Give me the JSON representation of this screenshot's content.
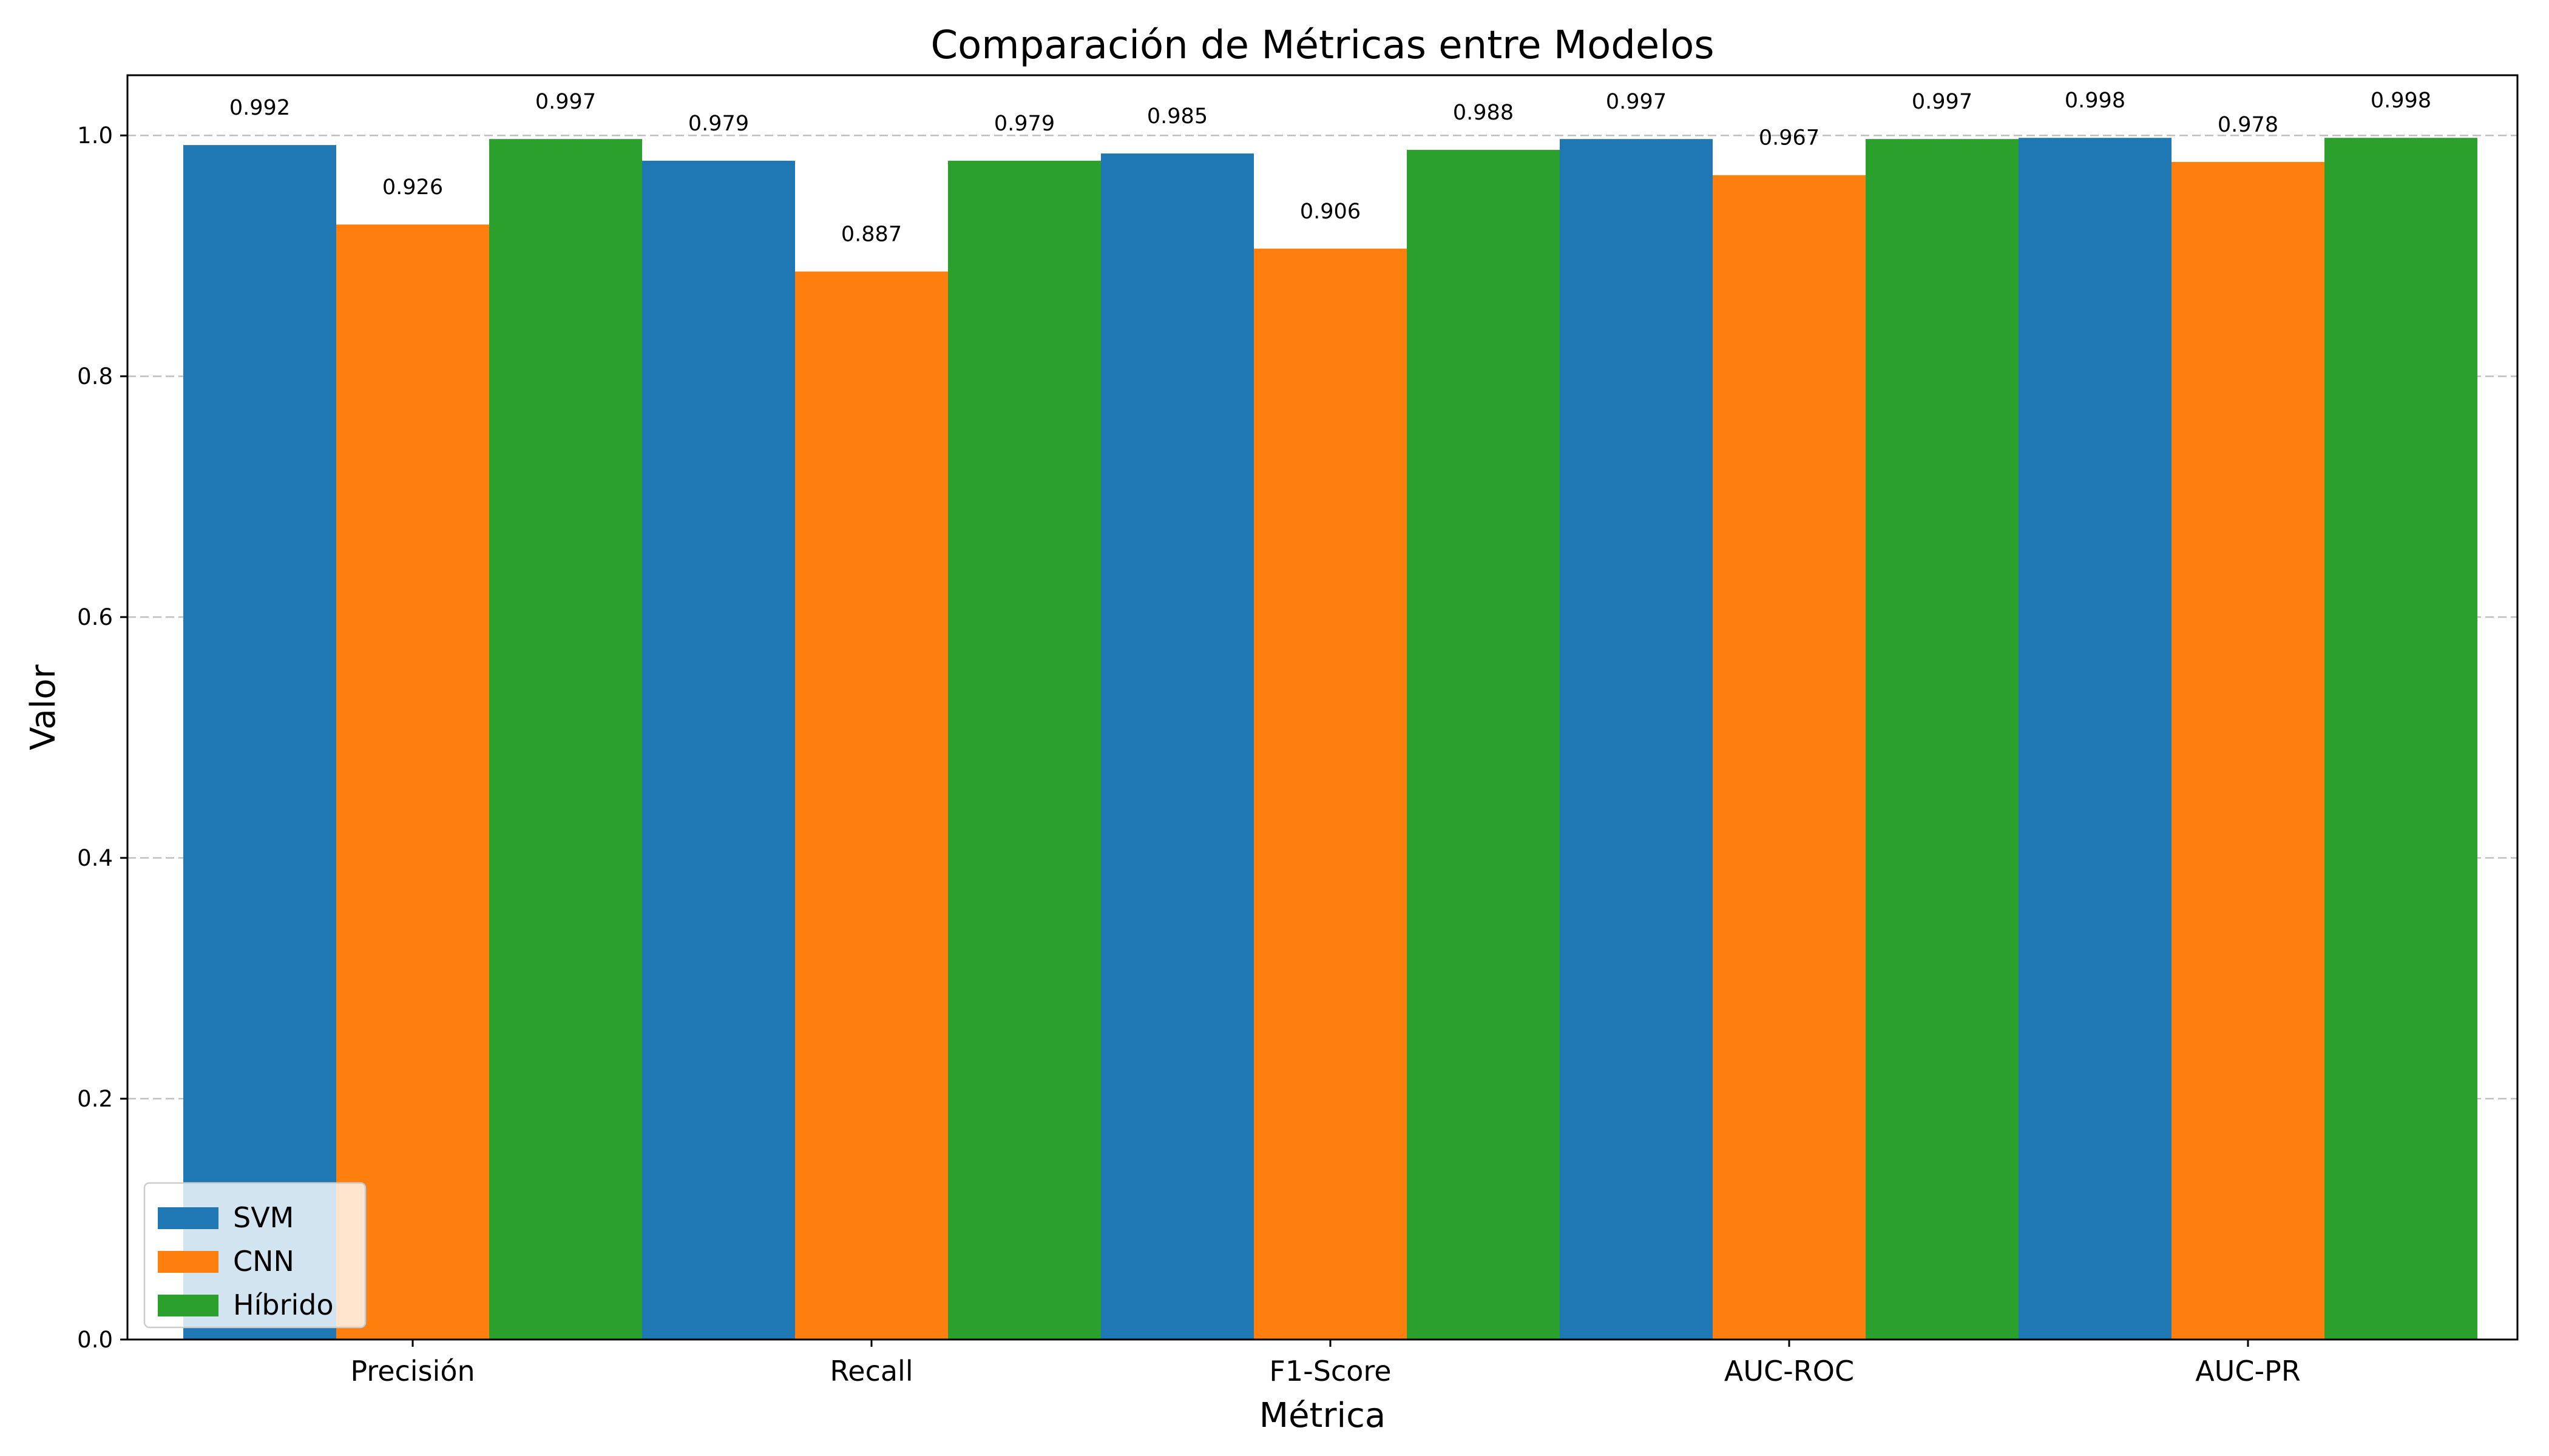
{
  "chart_data": {
    "type": "bar",
    "title": "Comparación de Métricas entre Modelos",
    "xlabel": "Métrica",
    "ylabel": "Valor",
    "categories": [
      "Precisión",
      "Recall",
      "F1-Score",
      "AUC-ROC",
      "AUC-PR"
    ],
    "series": [
      {
        "name": "SVM",
        "color": "#1f77b4",
        "values": [
          0.992,
          0.979,
          0.985,
          0.997,
          0.998
        ],
        "labels": [
          "0.992",
          "0.979",
          "0.985",
          "0.997",
          "0.998"
        ]
      },
      {
        "name": "CNN",
        "color": "#ff7f0e",
        "values": [
          0.926,
          0.887,
          0.906,
          0.967,
          0.978
        ],
        "labels": [
          "0.926",
          "0.887",
          "0.906",
          "0.967",
          "0.978"
        ]
      },
      {
        "name": "Híbrido",
        "color": "#2ca02c",
        "values": [
          0.997,
          0.979,
          0.988,
          0.997,
          0.998
        ],
        "labels": [
          "0.997",
          "0.979",
          "0.988",
          "0.997",
          "0.998"
        ]
      }
    ],
    "ylim": [
      0,
      1.05
    ],
    "yticks": [
      0.0,
      0.2,
      0.4,
      0.6,
      0.8,
      1.0
    ],
    "ytick_labels": [
      "0.0",
      "0.2",
      "0.4",
      "0.6",
      "0.8",
      "1.0"
    ],
    "grid": "horizontal dashed",
    "legend_position": "lower-left"
  }
}
